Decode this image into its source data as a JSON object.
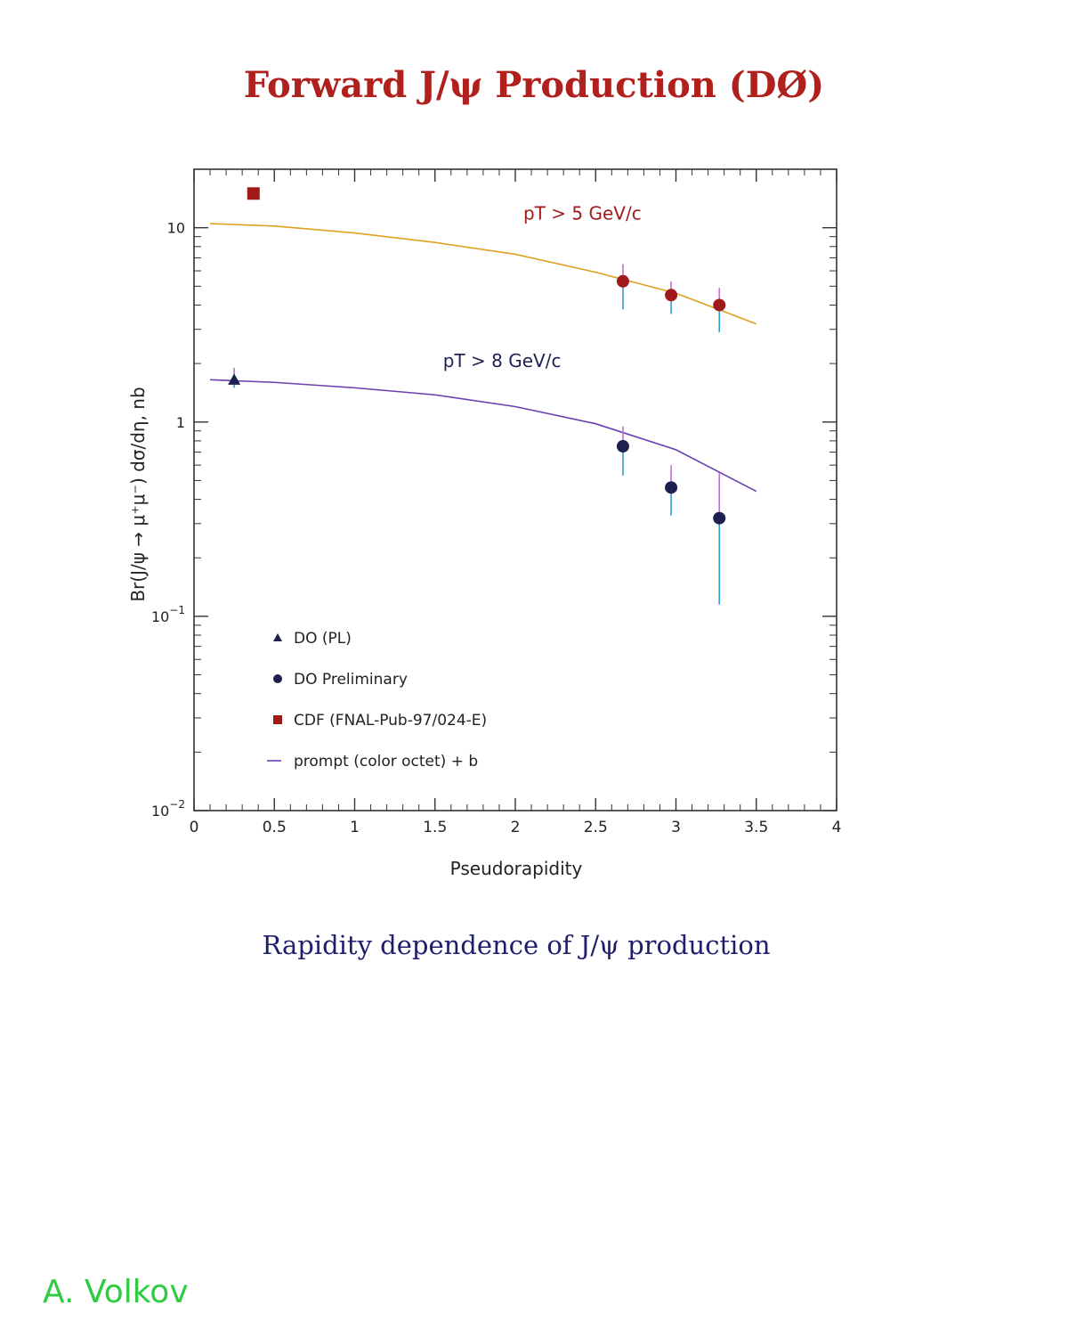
{
  "slide": {
    "title": "Forward J/ψ Production (DØ)",
    "caption": "Rapidity dependence of J/ψ production",
    "signature": "A. Volkov"
  },
  "chart_data": {
    "type": "scatter",
    "xlabel": "Pseudorapidity",
    "ylabel": "Br(J/ψ → μ⁺μ⁻) dσ/dη, nb",
    "xlim": [
      0,
      4
    ],
    "ylim": [
      0.01,
      20
    ],
    "yscale": "log",
    "x_ticks": [
      "0",
      "0.5",
      "1",
      "1.5",
      "2",
      "2.5",
      "3",
      "3.5",
      "4"
    ],
    "y_ticks": [
      {
        "value": 10,
        "base": "10",
        "exp": ""
      },
      {
        "value": 1,
        "base": "1",
        "exp": ""
      },
      {
        "value": 0.1,
        "base": "10",
        "exp": "−1"
      },
      {
        "value": 0.01,
        "base": "10",
        "exp": "−2"
      }
    ],
    "grid": false,
    "legend_position": "bottom-left",
    "colors": {
      "pt5": "#a11a1a",
      "pt8": "#1e2050",
      "curve5": "#e0a020",
      "curve8": "#6a3fb0",
      "err_top": "#c070d0",
      "err_bottom": "#30a0d0",
      "axis": "#333333"
    },
    "annotations": [
      {
        "text": "pT > 5 GeV/c",
        "x": 2.05,
        "y": 11,
        "color": "pt5"
      },
      {
        "text": "pT > 8 GeV/c",
        "x": 1.55,
        "y": 1.92,
        "color": "pt8"
      }
    ],
    "series": [
      {
        "name": "DO (PL)",
        "marker": "triangle",
        "color": "pt8",
        "points": [
          {
            "x": 0.25,
            "y": 1.65,
            "ylo": 1.5,
            "yhi": 1.9
          }
        ]
      },
      {
        "name": "DO Preliminary",
        "marker": "circle",
        "color": "pt5",
        "points": [
          {
            "x": 2.67,
            "y": 5.3,
            "ylo": 3.8,
            "yhi": 6.5
          },
          {
            "x": 2.97,
            "y": 4.5,
            "ylo": 3.6,
            "yhi": 5.3
          },
          {
            "x": 3.27,
            "y": 4.0,
            "ylo": 2.9,
            "yhi": 4.9
          }
        ]
      },
      {
        "name": "DO Preliminary",
        "marker": "circle",
        "color": "pt8",
        "points": [
          {
            "x": 2.67,
            "y": 0.75,
            "ylo": 0.53,
            "yhi": 0.95
          },
          {
            "x": 2.97,
            "y": 0.46,
            "ylo": 0.33,
            "yhi": 0.6
          },
          {
            "x": 3.27,
            "y": 0.32,
            "ylo": 0.115,
            "yhi": 0.55
          }
        ]
      },
      {
        "name": "CDF (FNAL-Pub-97/024-E)",
        "marker": "square",
        "color": "pt5",
        "points": [
          {
            "x": 0.37,
            "y": 15
          }
        ]
      }
    ],
    "curves": [
      {
        "name": "prompt (color octet) + b",
        "color": "curve5",
        "x": [
          0.1,
          0.5,
          1.0,
          1.5,
          2.0,
          2.5,
          3.0,
          3.5
        ],
        "y": [
          10.5,
          10.2,
          9.4,
          8.4,
          7.3,
          5.9,
          4.6,
          3.2
        ]
      },
      {
        "name": "prompt (color octet) + b",
        "color": "curve8",
        "x": [
          0.1,
          0.5,
          1.0,
          1.5,
          2.0,
          2.5,
          3.0,
          3.5
        ],
        "y": [
          1.65,
          1.6,
          1.5,
          1.38,
          1.2,
          0.98,
          0.72,
          0.44
        ]
      }
    ],
    "legend": [
      {
        "marker": "triangle",
        "label": "DO (PL)",
        "color": "pt8"
      },
      {
        "marker": "circle",
        "label": "DO Preliminary",
        "color": "pt8"
      },
      {
        "marker": "square",
        "label": "CDF (FNAL-Pub-97/024-E)",
        "color": "pt5"
      },
      {
        "marker": "line",
        "label": "prompt (color octet) + b",
        "color": "curve8"
      }
    ]
  }
}
